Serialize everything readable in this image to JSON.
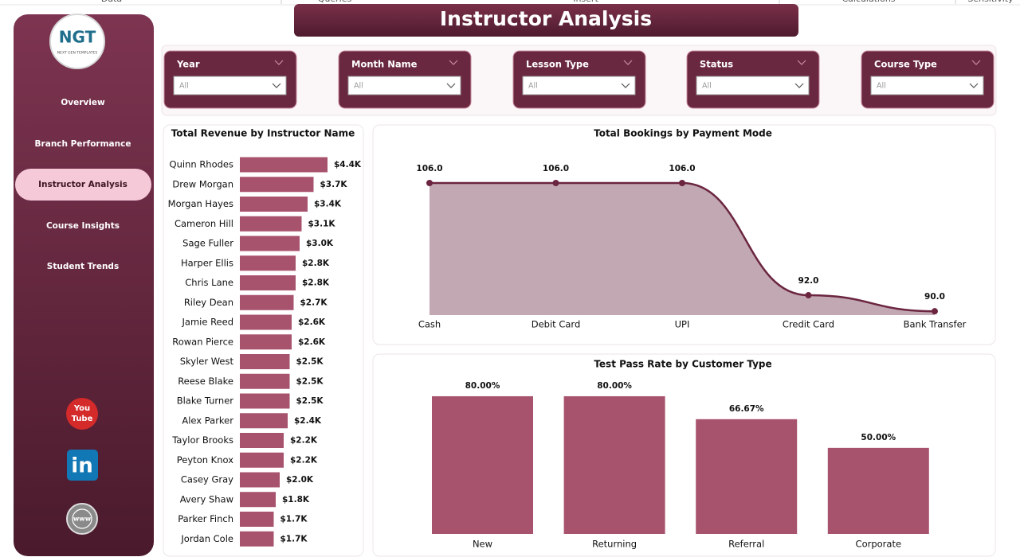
{
  "header": {
    "menu": [
      "Data",
      "Queries",
      "Insert",
      "Calculations",
      "Sensitivity"
    ],
    "title": "Instructor Analysis"
  },
  "sidebar": {
    "logo": {
      "mark": "NGT",
      "tagline": "NEXT GEN TEMPLATES"
    },
    "nav": [
      "Overview",
      "Branch Performance",
      "Instructor Analysis",
      "Course Insights",
      "Student Trends"
    ],
    "active": "Instructor Analysis",
    "icons": {
      "youtube": [
        "You",
        "Tube"
      ],
      "linkedin": "in",
      "web": "www"
    }
  },
  "filters": [
    {
      "label": "Year",
      "value": "All"
    },
    {
      "label": "Month Name",
      "value": "All"
    },
    {
      "label": "Lesson Type",
      "value": "All"
    },
    {
      "label": "Status",
      "value": "All"
    },
    {
      "label": "Course Type",
      "value": "All"
    }
  ],
  "chart_data": [
    {
      "type": "hbar",
      "title": "Total Revenue by Instructor Name",
      "categories": [
        "Quinn Rhodes",
        "Drew Morgan",
        "Morgan Hayes",
        "Cameron Hill",
        "Sage Fuller",
        "Harper Ellis",
        "Chris Lane",
        "Riley Dean",
        "Jamie Reed",
        "Rowan Pierce",
        "Skyler West",
        "Reese Blake",
        "Blake Turner",
        "Alex Parker",
        "Taylor Brooks",
        "Peyton Knox",
        "Casey Gray",
        "Avery Shaw",
        "Parker Finch",
        "Jordan Cole"
      ],
      "values": [
        4400,
        3700,
        3400,
        3100,
        3000,
        2800,
        2800,
        2700,
        2600,
        2600,
        2500,
        2500,
        2500,
        2400,
        2200,
        2200,
        2000,
        1800,
        1700,
        1700
      ],
      "value_labels": [
        "$4.4K",
        "$3.7K",
        "$3.4K",
        "$3.1K",
        "$3.0K",
        "$2.8K",
        "$2.8K",
        "$2.7K",
        "$2.6K",
        "$2.6K",
        "$2.5K",
        "$2.5K",
        "$2.5K",
        "$2.4K",
        "$2.2K",
        "$2.2K",
        "$2.0K",
        "$1.8K",
        "$1.7K",
        "$1.7K"
      ],
      "color": "#a8536d"
    },
    {
      "type": "area",
      "title": "Total Bookings by Payment Mode",
      "categories": [
        "Cash",
        "Debit Card",
        "UPI",
        "Credit Card",
        "Bank Transfer"
      ],
      "values": [
        106,
        106,
        106,
        92,
        90
      ],
      "value_labels": [
        "106.0",
        "106.0",
        "106.0",
        "92.0",
        "90.0"
      ],
      "color": "#6b2540",
      "fill": "#c2a8b2"
    },
    {
      "type": "bar",
      "title": "Test Pass Rate by Customer Type",
      "categories": [
        "New",
        "Returning",
        "Referral",
        "Corporate"
      ],
      "values": [
        80,
        80,
        66.67,
        50
      ],
      "value_labels": [
        "80.00%",
        "80.00%",
        "66.67%",
        "50.00%"
      ],
      "color": "#a8536d"
    }
  ]
}
